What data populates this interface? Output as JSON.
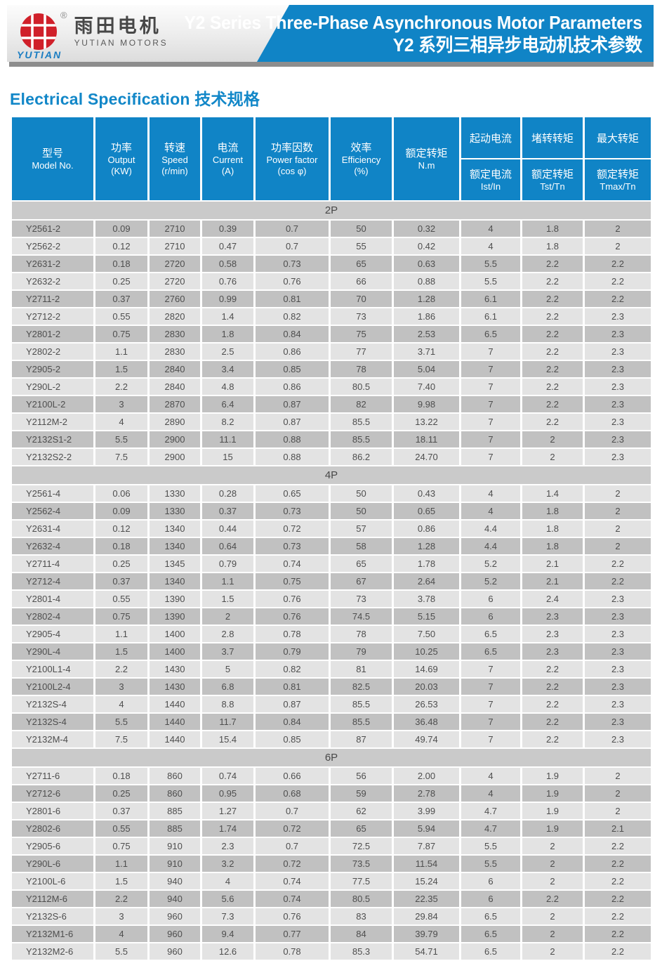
{
  "header": {
    "logo": {
      "brand_cn": "雨田电机",
      "brand_en": "YUTIAN MOTORS",
      "brand_script": "YUTIAN",
      "registered": "®"
    },
    "title_en": "Y2 Series Three-Phase Asynchronous Motor Parameters",
    "title_cn": "Y2 系列三相异步电动机技术参数"
  },
  "section_title": {
    "en": "Electrical Specification",
    "cn": "技术规格"
  },
  "colors": {
    "banner_blue": "#1084c6",
    "title_blue": "#1287c8",
    "logo_red": "#d0202a",
    "strip_gray": "#8d8d8d",
    "row_dark": "#c1c1c1",
    "row_light": "#e3e3e3",
    "band_gray": "#cacaca"
  },
  "table": {
    "columns": [
      {
        "cn": "型号",
        "en": "Model No.",
        "unit": ""
      },
      {
        "cn": "功率",
        "en": "Output",
        "unit": "(KW)"
      },
      {
        "cn": "转速",
        "en": "Speed",
        "unit": "(r/min)"
      },
      {
        "cn": "电流",
        "en": "Current",
        "unit": "(A)"
      },
      {
        "cn": "功率因数",
        "en": "Power factor",
        "unit": "(cos φ)"
      },
      {
        "cn": "效率",
        "en": "Efficiency",
        "unit": "(%)"
      },
      {
        "cn": "额定转矩",
        "en": "N.m",
        "unit": ""
      }
    ],
    "ratio_columns": [
      {
        "top": "起动电流",
        "bottom_cn": "额定电流",
        "bottom_en": "Ist/In"
      },
      {
        "top": "堵转转矩",
        "bottom_cn": "额定转矩",
        "bottom_en": "Tst/Tn"
      },
      {
        "top": "最大转矩",
        "bottom_cn": "额定转矩",
        "bottom_en": "Tmax/Tn"
      }
    ],
    "sections": [
      {
        "label": "2P",
        "start_shade": "dark",
        "rows": [
          [
            "Y2561-2",
            "0.09",
            "2710",
            "0.39",
            "0.7",
            "50",
            "0.32",
            "4",
            "1.8",
            "2"
          ],
          [
            "Y2562-2",
            "0.12",
            "2710",
            "0.47",
            "0.7",
            "55",
            "0.42",
            "4",
            "1.8",
            "2"
          ],
          [
            "Y2631-2",
            "0.18",
            "2720",
            "0.58",
            "0.73",
            "65",
            "0.63",
            "5.5",
            "2.2",
            "2.2"
          ],
          [
            "Y2632-2",
            "0.25",
            "2720",
            "0.76",
            "0.76",
            "66",
            "0.88",
            "5.5",
            "2.2",
            "2.2"
          ],
          [
            "Y2711-2",
            "0.37",
            "2760",
            "0.99",
            "0.81",
            "70",
            "1.28",
            "6.1",
            "2.2",
            "2.2"
          ],
          [
            "Y2712-2",
            "0.55",
            "2820",
            "1.4",
            "0.82",
            "73",
            "1.86",
            "6.1",
            "2.2",
            "2.3"
          ],
          [
            "Y2801-2",
            "0.75",
            "2830",
            "1.8",
            "0.84",
            "75",
            "2.53",
            "6.5",
            "2.2",
            "2.3"
          ],
          [
            "Y2802-2",
            "1.1",
            "2830",
            "2.5",
            "0.86",
            "77",
            "3.71",
            "7",
            "2.2",
            "2.3"
          ],
          [
            "Y2905-2",
            "1.5",
            "2840",
            "3.4",
            "0.85",
            "78",
            "5.04",
            "7",
            "2.2",
            "2.3"
          ],
          [
            "Y290L-2",
            "2.2",
            "2840",
            "4.8",
            "0.86",
            "80.5",
            "7.40",
            "7",
            "2.2",
            "2.3"
          ],
          [
            "Y2100L-2",
            "3",
            "2870",
            "6.4",
            "0.87",
            "82",
            "9.98",
            "7",
            "2.2",
            "2.3"
          ],
          [
            "Y2112M-2",
            "4",
            "2890",
            "8.2",
            "0.87",
            "85.5",
            "13.22",
            "7",
            "2.2",
            "2.3"
          ],
          [
            "Y2132S1-2",
            "5.5",
            "2900",
            "11.1",
            "0.88",
            "85.5",
            "18.11",
            "7",
            "2",
            "2.3"
          ],
          [
            "Y2132S2-2",
            "7.5",
            "2900",
            "15",
            "0.88",
            "86.2",
            "24.70",
            "7",
            "2",
            "2.3"
          ]
        ]
      },
      {
        "label": "4P",
        "start_shade": "light",
        "rows": [
          [
            "Y2561-4",
            "0.06",
            "1330",
            "0.28",
            "0.65",
            "50",
            "0.43",
            "4",
            "1.4",
            "2"
          ],
          [
            "Y2562-4",
            "0.09",
            "1330",
            "0.37",
            "0.73",
            "50",
            "0.65",
            "4",
            "1.8",
            "2"
          ],
          [
            "Y2631-4",
            "0.12",
            "1340",
            "0.44",
            "0.72",
            "57",
            "0.86",
            "4.4",
            "1.8",
            "2"
          ],
          [
            "Y2632-4",
            "0.18",
            "1340",
            "0.64",
            "0.73",
            "58",
            "1.28",
            "4.4",
            "1.8",
            "2"
          ],
          [
            "Y2711-4",
            "0.25",
            "1345",
            "0.79",
            "0.74",
            "65",
            "1.78",
            "5.2",
            "2.1",
            "2.2"
          ],
          [
            "Y2712-4",
            "0.37",
            "1340",
            "1.1",
            "0.75",
            "67",
            "2.64",
            "5.2",
            "2.1",
            "2.2"
          ],
          [
            "Y2801-4",
            "0.55",
            "1390",
            "1.5",
            "0.76",
            "73",
            "3.78",
            "6",
            "2.4",
            "2.3"
          ],
          [
            "Y2802-4",
            "0.75",
            "1390",
            "2",
            "0.76",
            "74.5",
            "5.15",
            "6",
            "2.3",
            "2.3"
          ],
          [
            "Y2905-4",
            "1.1",
            "1400",
            "2.8",
            "0.78",
            "78",
            "7.50",
            "6.5",
            "2.3",
            "2.3"
          ],
          [
            "Y290L-4",
            "1.5",
            "1400",
            "3.7",
            "0.79",
            "79",
            "10.25",
            "6.5",
            "2.3",
            "2.3"
          ],
          [
            "Y2100L1-4",
            "2.2",
            "1430",
            "5",
            "0.82",
            "81",
            "14.69",
            "7",
            "2.2",
            "2.3"
          ],
          [
            "Y2100L2-4",
            "3",
            "1430",
            "6.8",
            "0.81",
            "82.5",
            "20.03",
            "7",
            "2.2",
            "2.3"
          ],
          [
            "Y2132S-4",
            "4",
            "1440",
            "8.8",
            "0.87",
            "85.5",
            "26.53",
            "7",
            "2.2",
            "2.3"
          ],
          [
            "Y2132S-4",
            "5.5",
            "1440",
            "11.7",
            "0.84",
            "85.5",
            "36.48",
            "7",
            "2.2",
            "2.3"
          ],
          [
            "Y2132M-4",
            "7.5",
            "1440",
            "15.4",
            "0.85",
            "87",
            "49.74",
            "7",
            "2.2",
            "2.3"
          ]
        ]
      },
      {
        "label": "6P",
        "start_shade": "light",
        "rows": [
          [
            "Y2711-6",
            "0.18",
            "860",
            "0.74",
            "0.66",
            "56",
            "2.00",
            "4",
            "1.9",
            "2"
          ],
          [
            "Y2712-6",
            "0.25",
            "860",
            "0.95",
            "0.68",
            "59",
            "2.78",
            "4",
            "1.9",
            "2"
          ],
          [
            "Y2801-6",
            "0.37",
            "885",
            "1.27",
            "0.7",
            "62",
            "3.99",
            "4.7",
            "1.9",
            "2"
          ],
          [
            "Y2802-6",
            "0.55",
            "885",
            "1.74",
            "0.72",
            "65",
            "5.94",
            "4.7",
            "1.9",
            "2.1"
          ],
          [
            "Y2905-6",
            "0.75",
            "910",
            "2.3",
            "0.7",
            "72.5",
            "7.87",
            "5.5",
            "2",
            "2.2"
          ],
          [
            "Y290L-6",
            "1.1",
            "910",
            "3.2",
            "0.72",
            "73.5",
            "11.54",
            "5.5",
            "2",
            "2.2"
          ],
          [
            "Y2100L-6",
            "1.5",
            "940",
            "4",
            "0.74",
            "77.5",
            "15.24",
            "6",
            "2",
            "2.2"
          ],
          [
            "Y2112M-6",
            "2.2",
            "940",
            "5.6",
            "0.74",
            "80.5",
            "22.35",
            "6",
            "2.2",
            "2.2"
          ],
          [
            "Y2132S-6",
            "3",
            "960",
            "7.3",
            "0.76",
            "83",
            "29.84",
            "6.5",
            "2",
            "2.2"
          ],
          [
            "Y2132M1-6",
            "4",
            "960",
            "9.4",
            "0.77",
            "84",
            "39.79",
            "6.5",
            "2",
            "2.2"
          ],
          [
            "Y2132M2-6",
            "5.5",
            "960",
            "12.6",
            "0.78",
            "85.3",
            "54.71",
            "6.5",
            "2",
            "2.2"
          ]
        ]
      }
    ]
  }
}
